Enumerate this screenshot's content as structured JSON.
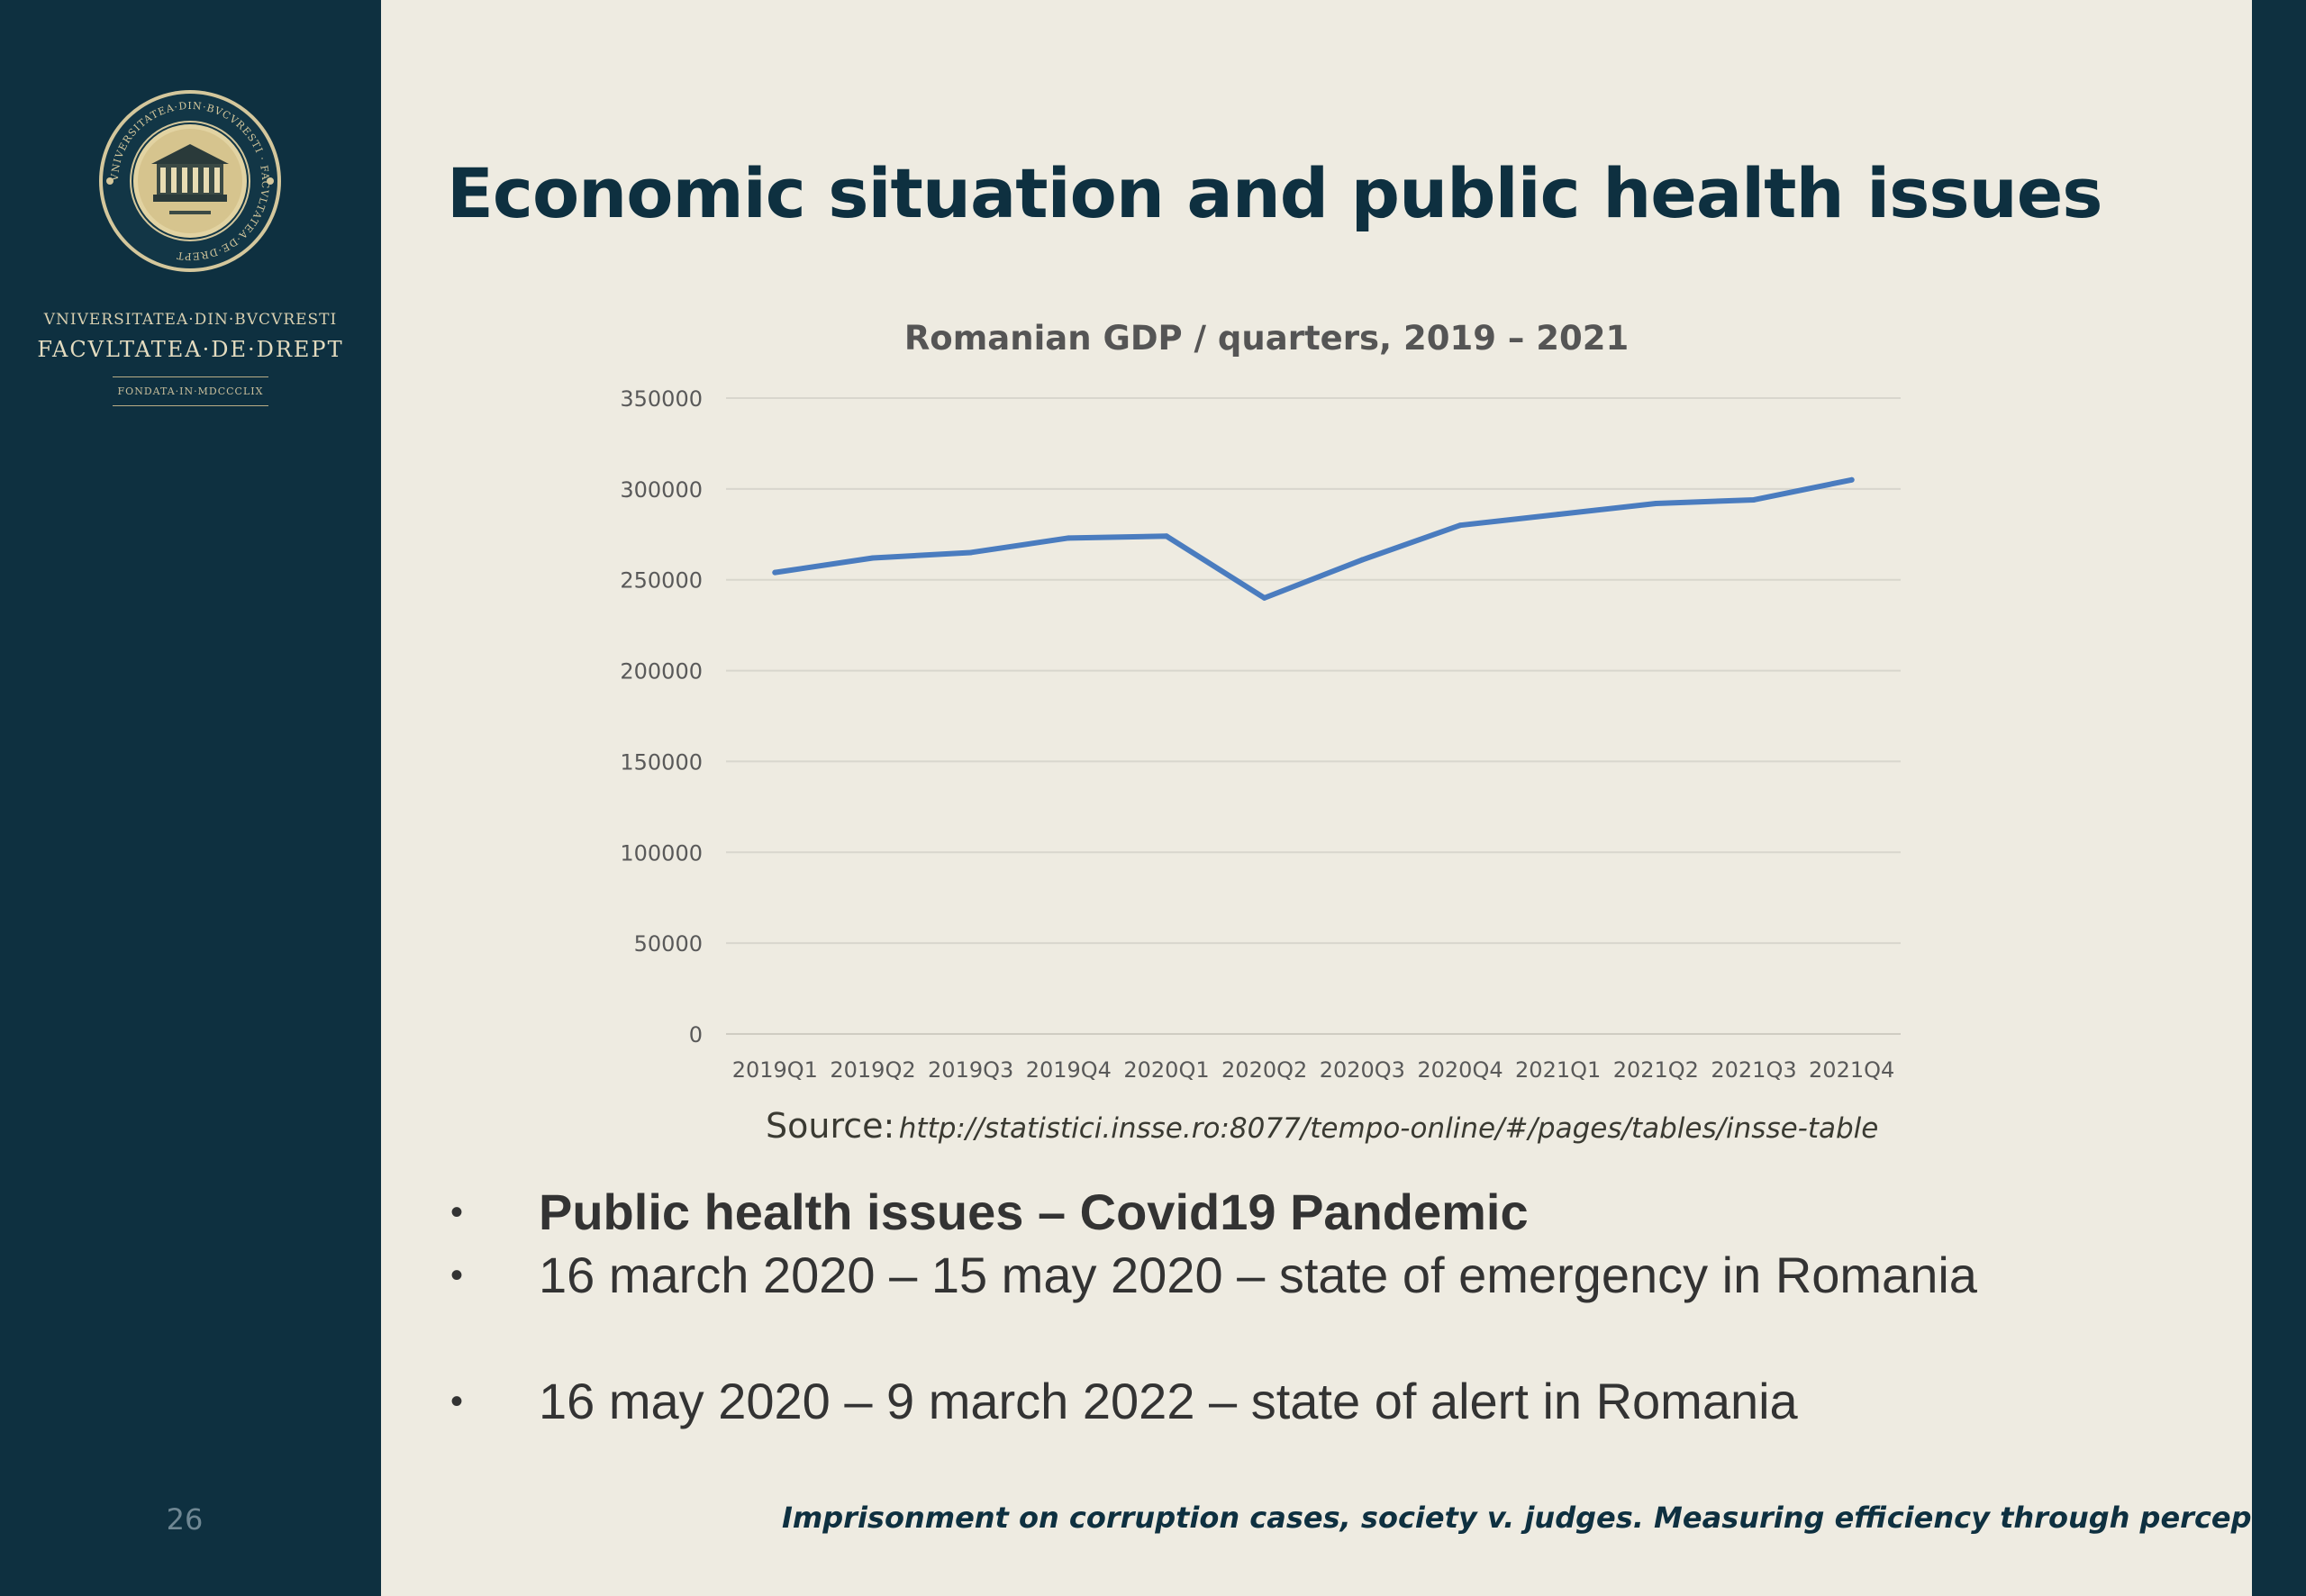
{
  "sidebar": {
    "logo_ring_text": "VNIVERSITATEA·DIN·BVCVRESTI · FACVLTATEA·DE·DREPT",
    "university": "VNIVERSITATEA·DIN·BVCVRESTI",
    "faculty": "FACVLTATEA·DE·DREPT",
    "founded": "FONDATA·IN·MDCCCLIX",
    "page_number": "26"
  },
  "slide": {
    "title": "Economic situation and public health issues",
    "source_label": "Source:",
    "source_url": "http://statistici.insse.ro:8077/tempo-online/#/pages/tables/insse-table",
    "bullets": [
      "Public health issues – Covid19 Pandemic",
      "16 march 2020 – 15 may 2020 – state of emergency in Romania",
      "16 may 2020 – 9 march 2022 – state of alert in Romania"
    ],
    "bullet_symbol": "•",
    "footer": "Imprisonment on corruption cases, society v. judges. Measuring efficiency through perception?"
  },
  "colors": {
    "sidebar_bg": "#0e3040",
    "slide_bg": "#eeebe1",
    "title": "#0e3040",
    "line": "#4a7cbf",
    "grid": "#d8d6cd"
  },
  "chart_data": {
    "type": "line",
    "title": "Romanian GDP / quarters, 2019 – 2021",
    "xlabel": "",
    "ylabel": "",
    "ylim": [
      0,
      350000
    ],
    "yticks": [
      0,
      50000,
      100000,
      150000,
      200000,
      250000,
      300000,
      350000
    ],
    "grid": true,
    "legend": "none",
    "categories": [
      "2019Q1",
      "2019Q2",
      "2019Q3",
      "2019Q4",
      "2020Q1",
      "2020Q2",
      "2020Q3",
      "2020Q4",
      "2021Q1",
      "2021Q2",
      "2021Q3",
      "2021Q4"
    ],
    "series": [
      {
        "values": [
          254000,
          262000,
          265000,
          273000,
          274000,
          240000,
          261000,
          280000,
          286000,
          292000,
          294000,
          305000
        ]
      }
    ]
  }
}
